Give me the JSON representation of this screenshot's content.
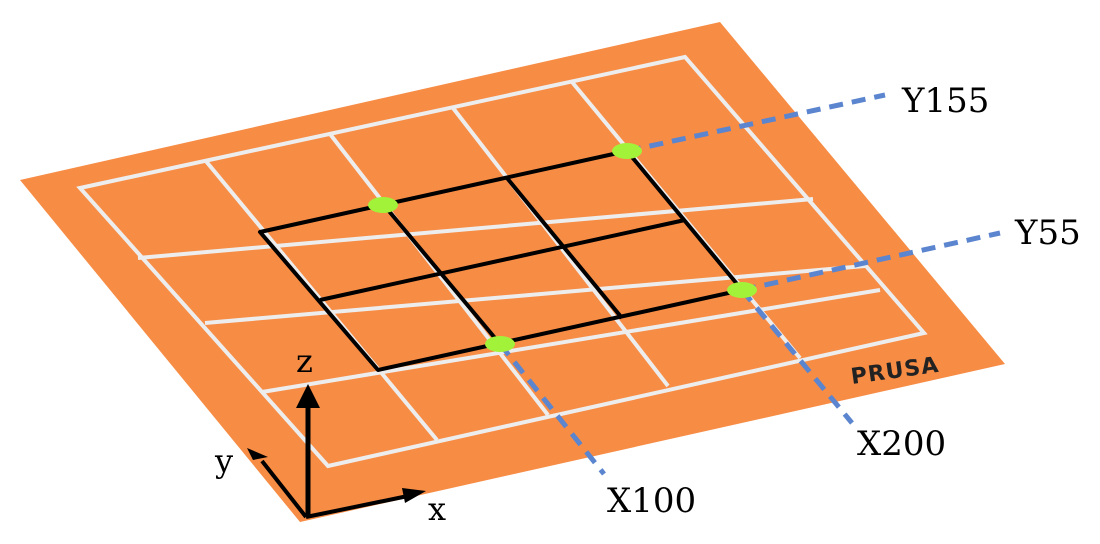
{
  "labels": {
    "y155": "Y155",
    "y55": "Y55",
    "x100": "X100",
    "x200": "X200"
  },
  "axes": {
    "x": "x",
    "y": "y",
    "z": "z"
  },
  "brand": "PRUSA",
  "colors": {
    "bed": "#f78c45",
    "outer_grid": "#ededed",
    "inner_grid": "#000000",
    "points": "#a2f23a",
    "guides": "#5b85cf",
    "brand": "#222222"
  },
  "points": [
    {
      "name": "X100-Y155"
    },
    {
      "name": "X200-Y155"
    },
    {
      "name": "X100-Y55"
    },
    {
      "name": "X200-Y55"
    }
  ]
}
